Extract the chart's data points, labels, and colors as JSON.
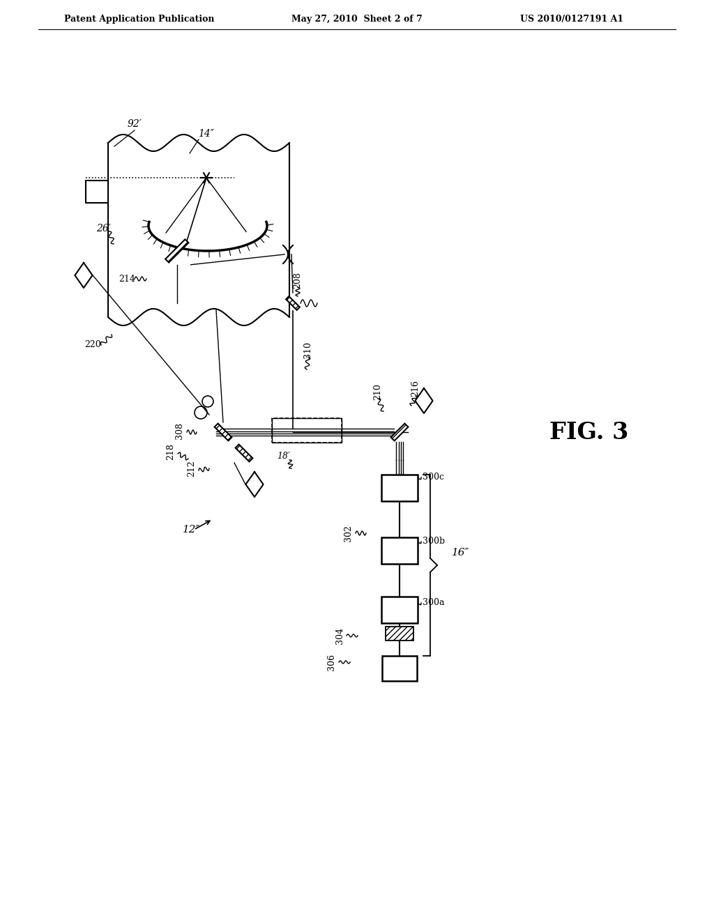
{
  "header_left": "Patent Application Publication",
  "header_mid": "May 27, 2010  Sheet 2 of 7",
  "header_right": "US 2010/0127191 A1",
  "background": "#ffffff",
  "line_color": "#000000"
}
